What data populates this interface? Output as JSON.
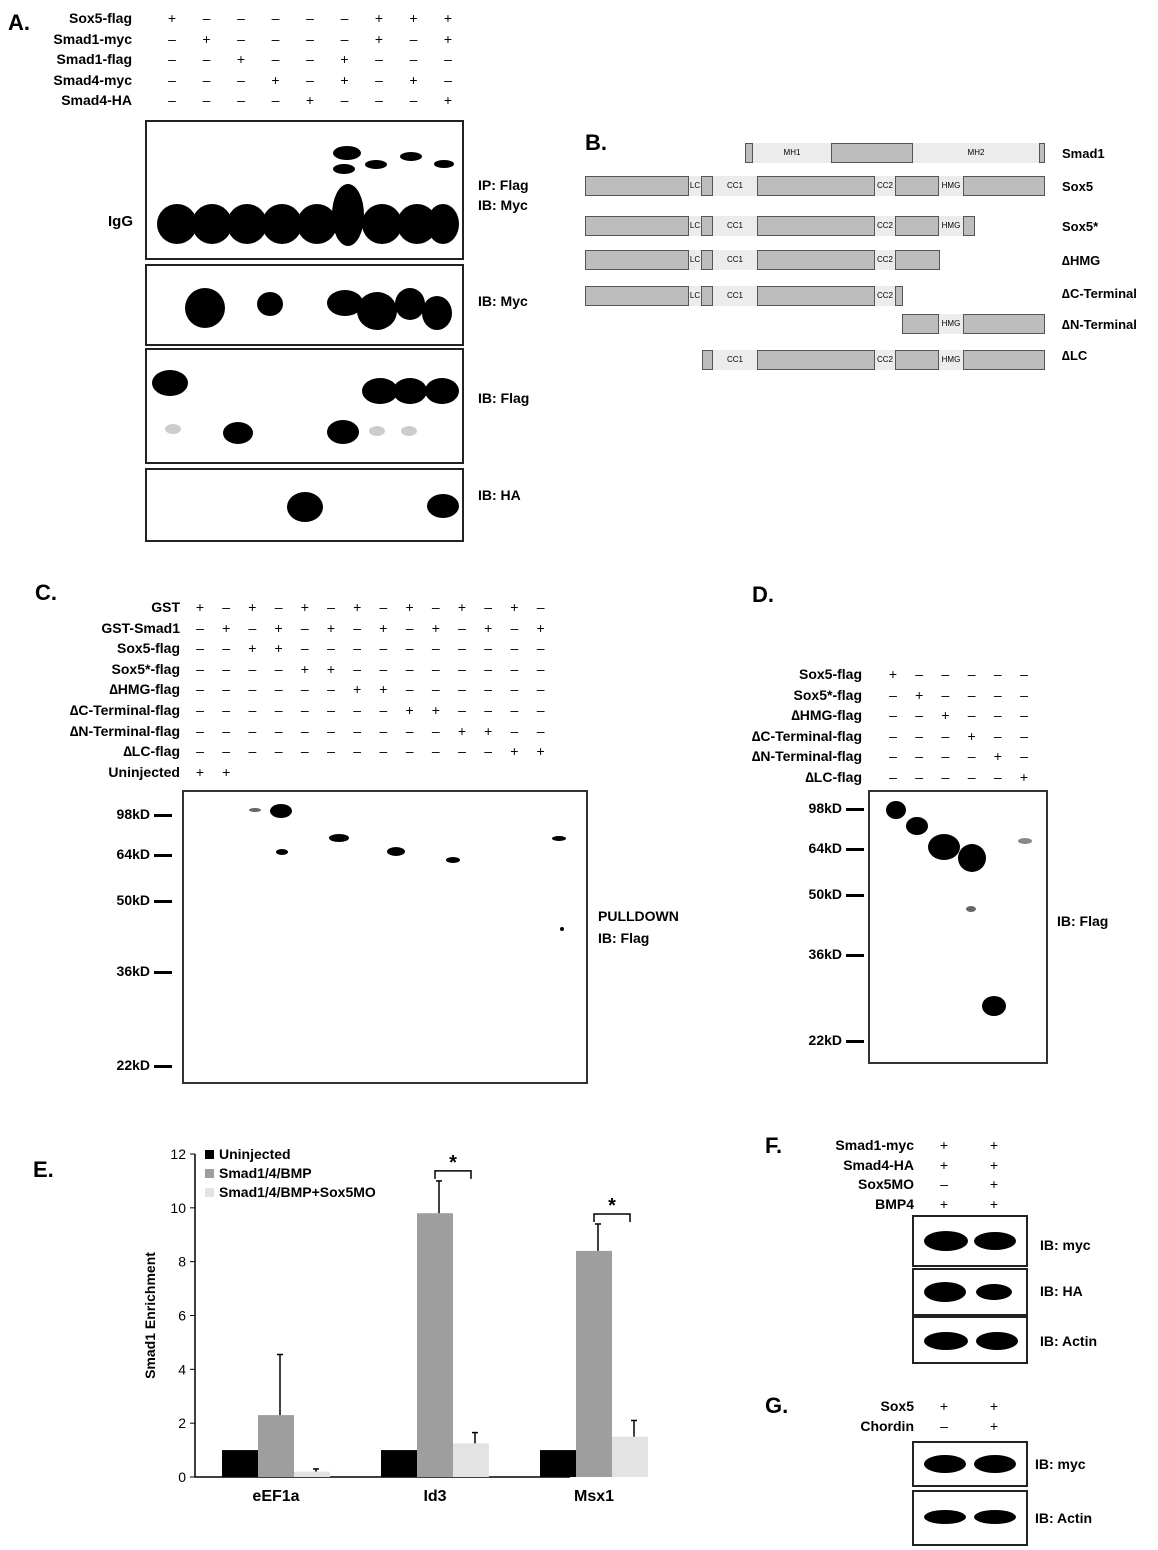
{
  "panels": {
    "a": "A.",
    "b": "B.",
    "c": "C.",
    "d": "D.",
    "e": "E.",
    "f": "F.",
    "g": "G."
  },
  "panel_a": {
    "rows": [
      {
        "label": "Sox5-flag",
        "signs": [
          "+",
          "–",
          "–",
          "–",
          "–",
          "–",
          "+",
          "+",
          "+"
        ]
      },
      {
        "label": "Smad1-myc",
        "signs": [
          "–",
          "+",
          "–",
          "–",
          "–",
          "–",
          "+",
          "–",
          "+"
        ]
      },
      {
        "label": "Smad1-flag",
        "signs": [
          "–",
          "–",
          "+",
          "–",
          "–",
          "+",
          "–",
          "–",
          "–"
        ]
      },
      {
        "label": "Smad4-myc",
        "signs": [
          "–",
          "–",
          "–",
          "+",
          "–",
          "+",
          "–",
          "+",
          "–"
        ]
      },
      {
        "label": "Smad4-HA",
        "signs": [
          "–",
          "–",
          "–",
          "–",
          "+",
          "–",
          "–",
          "–",
          "+"
        ]
      }
    ],
    "igg": "IgG",
    "blot_labels": [
      "IP: Flag",
      "IB: Myc",
      "IB: Myc",
      "IB: Flag",
      "IB: HA"
    ]
  },
  "panel_b": {
    "constructs": [
      {
        "name": "Smad1",
        "domains": [
          "MH1",
          "MH2"
        ]
      },
      {
        "name": "Sox5",
        "domains": [
          "LC",
          "CC1",
          "CC2",
          "HMG"
        ]
      },
      {
        "name": "Sox5*",
        "domains": [
          "LC",
          "CC1",
          "CC2",
          "HMG"
        ]
      },
      {
        "name": "∆HMG",
        "domains": [
          "LC",
          "CC1",
          "CC2"
        ]
      },
      {
        "name": "∆C-Terminal",
        "domains": [
          "LC",
          "CC1",
          "CC2"
        ]
      },
      {
        "name": "∆N-Terminal",
        "domains": [
          "HMG"
        ]
      },
      {
        "name": "∆LC",
        "domains": [
          "CC1",
          "CC2",
          "HMG"
        ]
      }
    ]
  },
  "panel_c": {
    "rows": [
      {
        "label": "GST",
        "signs": [
          "+",
          "–",
          "+",
          "–",
          "+",
          "–",
          "+",
          "–",
          "+",
          "–",
          "+",
          "–",
          "+",
          "–"
        ]
      },
      {
        "label": "GST-Smad1",
        "signs": [
          "–",
          "+",
          "–",
          "+",
          "–",
          "+",
          "–",
          "+",
          "–",
          "+",
          "–",
          "+",
          "–",
          "+"
        ]
      },
      {
        "label": "Sox5-flag",
        "signs": [
          "–",
          "–",
          "+",
          "+",
          "–",
          "–",
          "–",
          "–",
          "–",
          "–",
          "–",
          "–",
          "–",
          "–"
        ]
      },
      {
        "label": "Sox5*-flag",
        "signs": [
          "–",
          "–",
          "–",
          "–",
          "+",
          "+",
          "–",
          "–",
          "–",
          "–",
          "–",
          "–",
          "–",
          "–"
        ]
      },
      {
        "label": "∆HMG-flag",
        "signs": [
          "–",
          "–",
          "–",
          "–",
          "–",
          "–",
          "+",
          "+",
          "–",
          "–",
          "–",
          "–",
          "–",
          "–"
        ]
      },
      {
        "label": "∆C-Terminal-flag",
        "signs": [
          "–",
          "–",
          "–",
          "–",
          "–",
          "–",
          "–",
          "–",
          "+",
          "+",
          "–",
          "–",
          "–",
          "–"
        ]
      },
      {
        "label": "∆N-Terminal-flag",
        "signs": [
          "–",
          "–",
          "–",
          "–",
          "–",
          "–",
          "–",
          "–",
          "–",
          "–",
          "+",
          "+",
          "–",
          "–"
        ]
      },
      {
        "label": "∆LC-flag",
        "signs": [
          "–",
          "–",
          "–",
          "–",
          "–",
          "–",
          "–",
          "–",
          "–",
          "–",
          "–",
          "–",
          "+",
          "+"
        ]
      },
      {
        "label": "Uninjected",
        "signs": [
          "+",
          "+",
          "",
          "",
          "",
          "",
          "",
          "",
          "",
          "",
          "",
          "",
          "",
          ""
        ]
      }
    ],
    "markers": [
      "98kD",
      "64kD",
      "50kD",
      "36kD",
      "22kD"
    ],
    "side_label_1": "PULLDOWN",
    "side_label_2": "IB: Flag"
  },
  "panel_d": {
    "rows": [
      {
        "label": "Sox5-flag",
        "signs": [
          "+",
          "–",
          "–",
          "–",
          "–",
          "–"
        ]
      },
      {
        "label": "Sox5*-flag",
        "signs": [
          "–",
          "+",
          "–",
          "–",
          "–",
          "–"
        ]
      },
      {
        "label": "∆HMG-flag",
        "signs": [
          "–",
          "–",
          "+",
          "–",
          "–",
          "–"
        ]
      },
      {
        "label": "∆C-Terminal-flag",
        "signs": [
          "–",
          "–",
          "–",
          "+",
          "–",
          "–"
        ]
      },
      {
        "label": "∆N-Terminal-flag",
        "signs": [
          "–",
          "–",
          "–",
          "–",
          "+",
          "–"
        ]
      },
      {
        "label": "∆LC-flag",
        "signs": [
          "–",
          "–",
          "–",
          "–",
          "–",
          "+"
        ]
      }
    ],
    "markers": [
      "98kD",
      "64kD",
      "50kD",
      "36kD",
      "22kD"
    ],
    "side_label": "IB: Flag"
  },
  "chart_data": {
    "type": "bar",
    "categories": [
      "eEF1a",
      "Id3",
      "Msx1"
    ],
    "series": [
      {
        "name": "Uninjected",
        "values": [
          1.0,
          1.0,
          1.0
        ],
        "errors": [
          0.0,
          0.0,
          0.0
        ],
        "color": "#000000"
      },
      {
        "name": "Smad1/4/BMP",
        "values": [
          2.3,
          9.8,
          8.4
        ],
        "errors": [
          2.25,
          1.2,
          1.0
        ],
        "color": "#9e9e9e"
      },
      {
        "name": "Smad1/4/BMP+Sox5MO",
        "values": [
          0.2,
          1.25,
          1.5
        ],
        "errors": [
          0.1,
          0.4,
          0.6
        ],
        "color": "#e3e3e3"
      }
    ],
    "ylabel": "Smad1 Enrichment",
    "xlabel": "",
    "ylim": [
      0,
      12
    ],
    "yticks": [
      0,
      2,
      4,
      6,
      8,
      10,
      12
    ],
    "significance": [
      {
        "category": "Id3",
        "label": "*"
      },
      {
        "category": "Msx1",
        "label": "*"
      }
    ],
    "legend_position": "top-left",
    "grid": false
  },
  "panel_f": {
    "rows": [
      {
        "label": "Smad1-myc",
        "signs": [
          "+",
          "+"
        ]
      },
      {
        "label": "Smad4-HA",
        "signs": [
          "+",
          "+"
        ]
      },
      {
        "label": "Sox5MO",
        "signs": [
          "–",
          "+"
        ]
      },
      {
        "label": "BMP4",
        "signs": [
          "+",
          "+"
        ]
      }
    ],
    "blot_labels": [
      "IB: myc",
      "IB: HA",
      "IB: Actin"
    ]
  },
  "panel_g": {
    "rows": [
      {
        "label": "Sox5",
        "signs": [
          "+",
          "+"
        ]
      },
      {
        "label": "Chordin",
        "signs": [
          "–",
          "+"
        ]
      }
    ],
    "blot_labels": [
      "IB: myc",
      "IB: Actin"
    ]
  }
}
